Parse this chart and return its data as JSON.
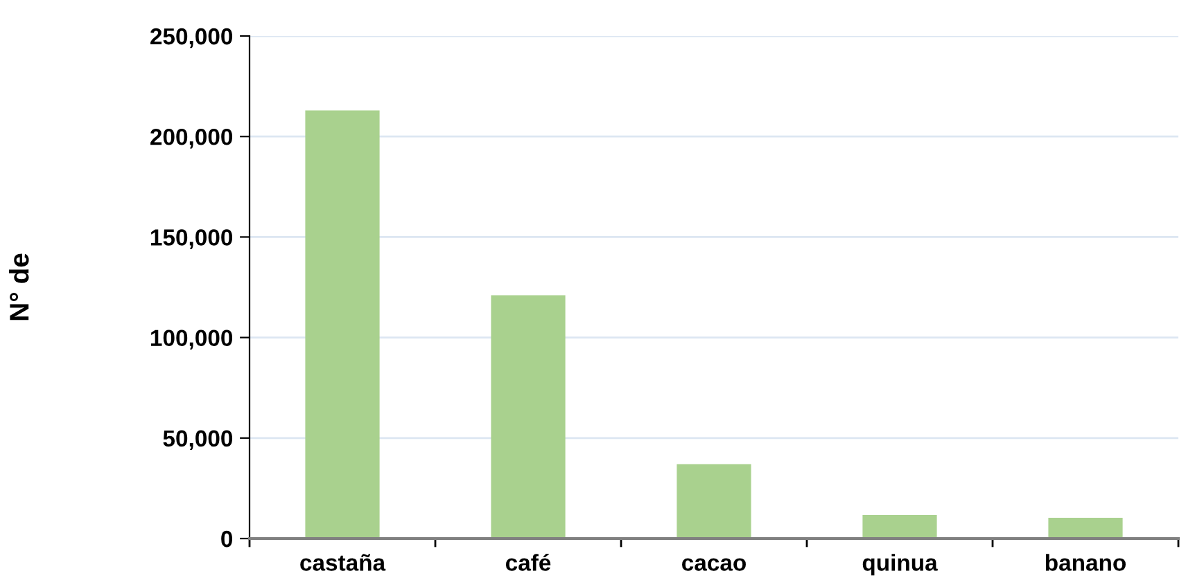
{
  "chart_data": {
    "type": "bar",
    "ylabel": "N° de",
    "categories": [
      "castaña",
      "café",
      "cacao",
      "quinua",
      "banano"
    ],
    "values": [
      213000,
      121000,
      37000,
      11700,
      10300
    ],
    "color": "#a9d18e",
    "ylim": [
      0,
      250000
    ],
    "yticks": [
      {
        "value": 0,
        "label": "0"
      },
      {
        "value": 50000,
        "label": "50,000"
      },
      {
        "value": 100000,
        "label": "100,000"
      },
      {
        "value": 150000,
        "label": "150,000"
      },
      {
        "value": 200000,
        "label": "200,000"
      },
      {
        "value": 250000,
        "label": "250,000"
      }
    ],
    "grid": "y",
    "legend": false
  }
}
